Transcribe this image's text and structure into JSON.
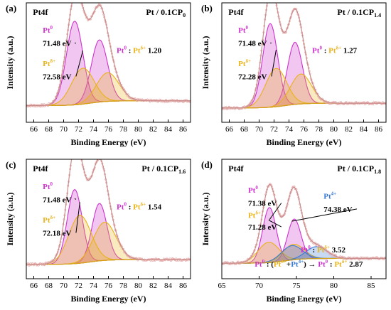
{
  "chart_data": [
    {
      "type": "line",
      "panel_label": "(a)",
      "region": "Pt4f",
      "sample_prefix": "Pt / 0.1CP",
      "sample_sub": "0",
      "xlabel": "Binding Energy (eV)",
      "ylabel": "Intensity (a.u.)",
      "xlim": [
        65,
        87
      ],
      "xticks": [
        "66",
        "68",
        "70",
        "72",
        "74",
        "76",
        "78",
        "80",
        "82",
        "84",
        "86"
      ],
      "xtick_values": [
        66,
        68,
        70,
        72,
        74,
        76,
        78,
        80,
        82,
        84,
        86
      ],
      "grid": false,
      "background_level": 0.14,
      "peaks": [
        {
          "state": "Pt0",
          "center_ev": 71.48,
          "height": 0.7,
          "width": 1.1,
          "color": "#cc33cc"
        },
        {
          "state": "Pt0",
          "center_ev": 74.8,
          "height": 0.52,
          "width": 1.1,
          "color": "#cc33cc"
        },
        {
          "state": "Pt2+",
          "center_ev": 72.58,
          "height": 0.3,
          "width": 1.5,
          "color": "#e8b31a"
        },
        {
          "state": "Pt2+",
          "center_ev": 75.9,
          "height": 0.24,
          "width": 1.5,
          "color": "#e8b31a"
        }
      ],
      "annotations": [
        {
          "base": "Pt",
          "sup": "0",
          "color": "#cc33cc"
        },
        {
          "text": "71.48 eV",
          "target_ev": 71.48
        },
        {
          "base": "Pt",
          "sup": "δ+",
          "color": "#e8b31a"
        },
        {
          "text": "72.58 eV",
          "target_ev": 72.58
        }
      ],
      "ratio": {
        "numerator": "Pt",
        "numerator_sup": "0",
        "separator": " : ",
        "denominator": "Pt",
        "denominator_sup": "δ+",
        "value": "1.20"
      }
    },
    {
      "type": "line",
      "panel_label": "(b)",
      "region": "Pt4f",
      "sample_prefix": "Pt / 0.1CP",
      "sample_sub": "1.4",
      "xlabel": "Binding Energy (eV)",
      "ylabel": "Intensity (a.u.)",
      "xlim": [
        65,
        87
      ],
      "xticks": [
        "66",
        "68",
        "70",
        "72",
        "74",
        "76",
        "78",
        "80",
        "82",
        "84",
        "86"
      ],
      "xtick_values": [
        66,
        68,
        70,
        72,
        74,
        76,
        78,
        80,
        82,
        84,
        86
      ],
      "grid": false,
      "background_level": 0.12,
      "peaks": [
        {
          "state": "Pt0",
          "center_ev": 71.48,
          "height": 0.7,
          "width": 1.0,
          "color": "#cc33cc"
        },
        {
          "state": "Pt0",
          "center_ev": 74.8,
          "height": 0.52,
          "width": 1.0,
          "color": "#cc33cc"
        },
        {
          "state": "Pt2+",
          "center_ev": 72.28,
          "height": 0.32,
          "width": 1.4,
          "color": "#e8b31a"
        },
        {
          "state": "Pt2+",
          "center_ev": 75.6,
          "height": 0.25,
          "width": 1.4,
          "color": "#e8b31a"
        }
      ],
      "annotations": [
        {
          "base": "Pt",
          "sup": "0",
          "color": "#cc33cc"
        },
        {
          "text": "71.48 eV",
          "target_ev": 71.48
        },
        {
          "base": "Pt",
          "sup": "δ+",
          "color": "#e8b31a"
        },
        {
          "text": "72.28 eV",
          "target_ev": 72.28
        }
      ],
      "ratio": {
        "numerator": "Pt",
        "numerator_sup": "0",
        "separator": " : ",
        "denominator": "Pt",
        "denominator_sup": "δ+",
        "value": "1.27"
      }
    },
    {
      "type": "line",
      "panel_label": "(c)",
      "region": "Pt4f",
      "sample_prefix": "Pt / 0.1CP",
      "sample_sub": "1.6",
      "xlabel": "Binding Energy (eV)",
      "ylabel": "Intensity (a.u.)",
      "xlim": [
        65,
        87
      ],
      "xticks": [
        "66",
        "68",
        "70",
        "72",
        "74",
        "76",
        "78",
        "80",
        "82",
        "84",
        "86"
      ],
      "xtick_values": [
        66,
        68,
        70,
        72,
        74,
        76,
        78,
        80,
        82,
        84,
        86
      ],
      "grid": false,
      "background_level": 0.12,
      "peaks": [
        {
          "state": "Pt0",
          "center_ev": 71.48,
          "height": 0.62,
          "width": 1.0,
          "color": "#cc33cc"
        },
        {
          "state": "Pt0",
          "center_ev": 74.8,
          "height": 0.48,
          "width": 1.0,
          "color": "#cc33cc"
        },
        {
          "state": "Pt2+",
          "center_ev": 72.18,
          "height": 0.4,
          "width": 1.5,
          "color": "#e8b31a"
        },
        {
          "state": "Pt2+",
          "center_ev": 75.5,
          "height": 0.32,
          "width": 1.5,
          "color": "#e8b31a"
        }
      ],
      "annotations": [
        {
          "base": "Pt",
          "sup": "0",
          "color": "#cc33cc"
        },
        {
          "text": "71.48 eV",
          "target_ev": 71.48
        },
        {
          "base": "Pt",
          "sup": "δ+",
          "color": "#e8b31a"
        },
        {
          "text": "72.18 eV",
          "target_ev": 72.18
        }
      ],
      "ratio": {
        "numerator": "Pt",
        "numerator_sup": "0",
        "separator": " : ",
        "denominator": "Pt",
        "denominator_sup": "δ+",
        "value": "1.54"
      }
    },
    {
      "type": "line",
      "panel_label": "(d)",
      "region": "Pt4f",
      "sample_prefix": "Pt / 0.1CP",
      "sample_sub": "1.8",
      "xlabel": "Binding Energy (eV)",
      "ylabel": "Intensity (a.u.)",
      "xlim": [
        65,
        87
      ],
      "xticks": [
        "65",
        "70",
        "75",
        "80",
        "85"
      ],
      "xtick_values": [
        65,
        70,
        75,
        80,
        85
      ],
      "grid": false,
      "background_level": 0.13,
      "peaks": [
        {
          "state": "Pt0",
          "center_ev": 71.38,
          "height": 0.46,
          "width": 0.9,
          "color": "#cc33cc"
        },
        {
          "state": "Pt0",
          "center_ev": 74.7,
          "height": 0.34,
          "width": 0.9,
          "color": "#cc33cc"
        },
        {
          "state": "Pt2+",
          "center_ev": 71.28,
          "height": 0.17,
          "width": 1.4,
          "color": "#e8b31a"
        },
        {
          "state": "Pt2+",
          "center_ev": 74.6,
          "height": 0.13,
          "width": 1.4,
          "color": "#e8b31a"
        },
        {
          "state": "Pt4+",
          "center_ev": 74.38,
          "height": 0.12,
          "width": 1.4,
          "color": "#3a7bd5"
        },
        {
          "state": "Pt4+",
          "center_ev": 77.7,
          "height": 0.1,
          "width": 1.4,
          "color": "#3a7bd5"
        }
      ],
      "annotations": [
        {
          "base": "Pt",
          "sup": "0",
          "color": "#cc33cc"
        },
        {
          "text": "71.38 eV",
          "target_ev": 71.38
        },
        {
          "base": "Pt",
          "sup": "δ+",
          "color": "#e8b31a"
        },
        {
          "text": "71.28 eV",
          "target_ev": 71.28
        },
        {
          "base": "Pt",
          "sup": "4+",
          "color": "#3a7bd5"
        },
        {
          "text": "74.38 eV",
          "target_ev": 74.38
        }
      ],
      "ratio": {
        "numerator": "Pt",
        "numerator_sup": "0",
        "separator": " : ",
        "denominator": "Pt",
        "denominator_sup": "δ+",
        "value": "3.52"
      },
      "ratio2": {
        "lead": "Pt",
        "lead_sup": "0",
        "mid": " : (",
        "a": "Pt",
        "a_sup": "δ+",
        "plus": "+",
        "b": "Pt",
        "b_sup": "4+",
        "close": ")",
        "arrow": "→",
        "c": "Pt",
        "c_sup": "0",
        "sep": " : ",
        "d": "Pt",
        "d_sup": "δ+",
        "value": "2.87"
      }
    }
  ]
}
